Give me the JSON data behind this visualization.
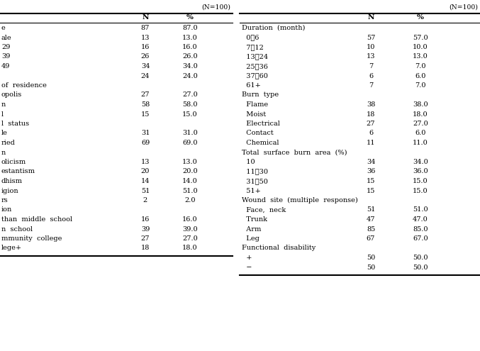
{
  "title_left": "(N=100)",
  "title_right": "(N=100)",
  "left_table": {
    "sections": [
      {
        "header": null,
        "rows": [
          [
            "e",
            "87",
            "87.0"
          ],
          [
            "ale",
            "13",
            "13.0"
          ]
        ]
      },
      {
        "header": null,
        "rows": [
          [
            "29",
            "16",
            "16.0"
          ],
          [
            "39",
            "26",
            "26.0"
          ],
          [
            "49",
            "34",
            "34.0"
          ],
          [
            "",
            "24",
            "24.0"
          ]
        ]
      },
      {
        "header": "of  residence",
        "rows": [
          [
            "opolis",
            "27",
            "27.0"
          ],
          [
            "n",
            "58",
            "58.0"
          ],
          [
            "l",
            "15",
            "15.0"
          ]
        ]
      },
      {
        "header": "l  status",
        "rows": [
          [
            "le",
            "31",
            "31.0"
          ],
          [
            "ried",
            "69",
            "69.0"
          ]
        ]
      },
      {
        "header": "n",
        "rows": [
          [
            "olicism",
            "13",
            "13.0"
          ],
          [
            "estantism",
            "20",
            "20.0"
          ],
          [
            "dhism",
            "14",
            "14.0"
          ],
          [
            "igion",
            "51",
            "51.0"
          ],
          [
            "rs",
            "2",
            "2.0"
          ]
        ]
      },
      {
        "header": "ion",
        "rows": [
          [
            "than  middle  school",
            "16",
            "16.0"
          ],
          [
            "n  school",
            "39",
            "39.0"
          ],
          [
            "mmunity  college",
            "27",
            "27.0"
          ],
          [
            "lege+",
            "18",
            "18.0"
          ]
        ]
      }
    ]
  },
  "right_table": {
    "sections": [
      {
        "header": "Duration  (month)",
        "rows": [
          [
            "  0∾6",
            "57",
            "57.0"
          ],
          [
            "  7∾12",
            "10",
            "10.0"
          ],
          [
            "  13∾24",
            "13",
            "13.0"
          ],
          [
            "  25∾36",
            "7",
            "7.0"
          ],
          [
            "  37∾60",
            "6",
            "6.0"
          ],
          [
            "  61+",
            "7",
            "7.0"
          ]
        ]
      },
      {
        "header": "Burn  type",
        "rows": [
          [
            "  Flame",
            "38",
            "38.0"
          ],
          [
            "  Moist",
            "18",
            "18.0"
          ],
          [
            "  Electrical",
            "27",
            "27.0"
          ],
          [
            "  Contact",
            "6",
            "6.0"
          ],
          [
            "  Chemical",
            "11",
            "11.0"
          ]
        ]
      },
      {
        "header": "Total  surface  burn  area  (%)",
        "rows": [
          [
            "  10",
            "34",
            "34.0"
          ],
          [
            "  11∾30",
            "36",
            "36.0"
          ],
          [
            "  31∾50",
            "15",
            "15.0"
          ],
          [
            "  51+",
            "15",
            "15.0"
          ]
        ]
      },
      {
        "header": "Wound  site  (multiple  response)",
        "rows": [
          [
            "  Face,  neck",
            "51",
            "51.0"
          ],
          [
            "  Trunk",
            "47",
            "47.0"
          ],
          [
            "  Arm",
            "85",
            "85.0"
          ],
          [
            "  Leg",
            "67",
            "67.0"
          ]
        ]
      },
      {
        "header": "Functional  disability",
        "rows": [
          [
            "  +",
            "50",
            "50.0"
          ],
          [
            "  −",
            "50",
            "50.0"
          ]
        ]
      }
    ]
  },
  "font_size": 7.0,
  "bg_color": "#ffffff",
  "text_color": "#000000",
  "line_color": "#000000"
}
